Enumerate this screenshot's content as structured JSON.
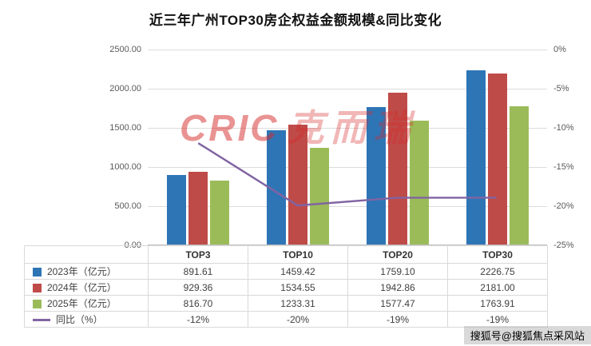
{
  "title": "近三年广州TOP30房企权益金额规模&同比变化",
  "watermark": {
    "logo": "CRIC",
    "text": "克而瑞"
  },
  "footer_watermark": "搜狐号@搜狐焦点采风站",
  "colors": {
    "bar_2023": "#2E75B6",
    "bar_2024": "#BE4B48",
    "bar_2025": "#9BBB59",
    "yoy_line": "#8064A2",
    "grid": "#DCDCDC",
    "watermark_red": "#D52828"
  },
  "chart_data": {
    "type": "bar",
    "categories": [
      "TOP3",
      "TOP10",
      "TOP20",
      "TOP30"
    ],
    "series": [
      {
        "key": "2023",
        "name": "2023年（亿元）",
        "type": "bar",
        "color": "#2E75B6",
        "values": [
          891.61,
          1459.42,
          1759.1,
          2226.75
        ]
      },
      {
        "key": "2024",
        "name": "2024年（亿元）",
        "type": "bar",
        "color": "#BE4B48",
        "values": [
          929.36,
          1534.55,
          1942.86,
          2181.0
        ]
      },
      {
        "key": "2025",
        "name": "2025年（亿元）",
        "type": "bar",
        "color": "#9BBB59",
        "values": [
          816.7,
          1233.31,
          1577.47,
          1763.91
        ]
      },
      {
        "key": "yoy",
        "name": "同比（%）",
        "type": "line",
        "color": "#8064A2",
        "values": [
          -12,
          -20,
          -19,
          -19
        ]
      }
    ],
    "left_axis": {
      "min": 0,
      "max": 2500,
      "step": 500,
      "tick_labels": [
        "2500.00",
        "2000.00",
        "1500.00",
        "1000.00",
        "500.00",
        "0.00"
      ]
    },
    "right_axis": {
      "min": -25,
      "max": 0,
      "step": 5,
      "tick_labels": [
        "0%",
        "-5%",
        "-10%",
        "-15%",
        "-20%",
        "-25%"
      ]
    },
    "grid": true,
    "legend_position": "table-left"
  },
  "table": {
    "rows": [
      {
        "values": [
          "891.61",
          "1459.42",
          "1759.10",
          "2226.75"
        ]
      },
      {
        "values": [
          "929.36",
          "1534.55",
          "1942.86",
          "2181.00"
        ]
      },
      {
        "values": [
          "816.70",
          "1233.31",
          "1577.47",
          "1763.91"
        ]
      },
      {
        "values": [
          "-12%",
          "-20%",
          "-19%",
          "-19%"
        ]
      }
    ]
  }
}
